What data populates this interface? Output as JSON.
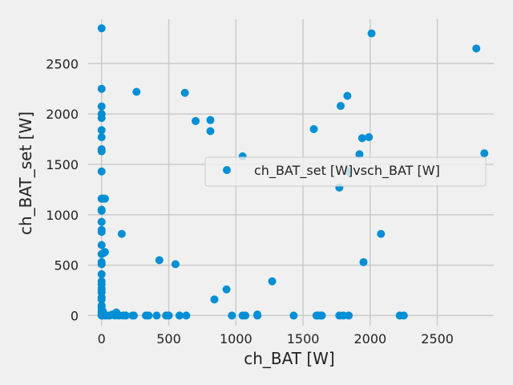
{
  "chart_data": {
    "type": "scatter",
    "title": "",
    "xlabel": "ch_BAT [W]",
    "ylabel": "ch_BAT_set [W]",
    "xlim": [
      -100,
      2920
    ],
    "ylim": [
      -100,
      2940
    ],
    "xticks": [
      0,
      500,
      1000,
      1500,
      2000,
      2500
    ],
    "yticks": [
      0,
      500,
      1000,
      1500,
      2000,
      2500
    ],
    "grid": true,
    "legend": {
      "position": "right",
      "entries": [
        "ch_BAT_set [W]vsch_BAT [W]"
      ]
    },
    "colors": {
      "marker": "#008fd5",
      "grid": "#cbcbcb",
      "background": "#f0f0f0"
    },
    "series": [
      {
        "name": "ch_BAT_set [W]vsch_BAT [W]",
        "points": [
          [
            0,
            2850
          ],
          [
            0,
            2250
          ],
          [
            0,
            2075
          ],
          [
            0,
            2000
          ],
          [
            0,
            1960
          ],
          [
            0,
            1840
          ],
          [
            0,
            1770
          ],
          [
            0,
            1650
          ],
          [
            0,
            1630
          ],
          [
            0,
            1430
          ],
          [
            0,
            1160
          ],
          [
            0,
            1050
          ],
          [
            0,
            1040
          ],
          [
            0,
            930
          ],
          [
            0,
            850
          ],
          [
            0,
            830
          ],
          [
            0,
            700
          ],
          [
            0,
            610
          ],
          [
            0,
            530
          ],
          [
            0,
            510
          ],
          [
            0,
            410
          ],
          [
            0,
            340
          ],
          [
            0,
            310
          ],
          [
            0,
            270
          ],
          [
            0,
            250
          ],
          [
            0,
            230
          ],
          [
            0,
            180
          ],
          [
            0,
            160
          ],
          [
            0,
            100
          ],
          [
            0,
            80
          ],
          [
            0,
            50
          ],
          [
            0,
            30
          ],
          [
            0,
            10
          ],
          [
            0,
            0
          ],
          [
            10,
            1160
          ],
          [
            25,
            1160
          ],
          [
            15,
            620
          ],
          [
            25,
            630
          ],
          [
            10,
            40
          ],
          [
            20,
            0
          ],
          [
            40,
            0
          ],
          [
            60,
            0
          ],
          [
            80,
            10
          ],
          [
            100,
            0
          ],
          [
            110,
            30
          ],
          [
            130,
            0
          ],
          [
            150,
            810
          ],
          [
            160,
            0
          ],
          [
            180,
            0
          ],
          [
            230,
            0
          ],
          [
            240,
            0
          ],
          [
            260,
            2220
          ],
          [
            330,
            0
          ],
          [
            350,
            0
          ],
          [
            410,
            0
          ],
          [
            430,
            550
          ],
          [
            480,
            0
          ],
          [
            500,
            0
          ],
          [
            550,
            510
          ],
          [
            580,
            0
          ],
          [
            620,
            2210
          ],
          [
            630,
            0
          ],
          [
            700,
            1930
          ],
          [
            810,
            1940
          ],
          [
            810,
            1830
          ],
          [
            840,
            160
          ],
          [
            930,
            260
          ],
          [
            970,
            0
          ],
          [
            1050,
            1580
          ],
          [
            1050,
            0
          ],
          [
            1070,
            0
          ],
          [
            1160,
            0
          ],
          [
            1160,
            10
          ],
          [
            1270,
            340
          ],
          [
            1430,
            0
          ],
          [
            1580,
            1850
          ],
          [
            1600,
            0
          ],
          [
            1610,
            0
          ],
          [
            1630,
            0
          ],
          [
            1640,
            0
          ],
          [
            1770,
            1270
          ],
          [
            1770,
            0
          ],
          [
            1780,
            2080
          ],
          [
            1800,
            0
          ],
          [
            1830,
            2180
          ],
          [
            1840,
            1430
          ],
          [
            1840,
            0
          ],
          [
            1920,
            1600
          ],
          [
            1940,
            1760
          ],
          [
            1950,
            530
          ],
          [
            1990,
            1770
          ],
          [
            2010,
            2800
          ],
          [
            2080,
            810
          ],
          [
            2220,
            0
          ],
          [
            2250,
            0
          ],
          [
            2790,
            2650
          ],
          [
            2850,
            1610
          ]
        ]
      }
    ]
  }
}
